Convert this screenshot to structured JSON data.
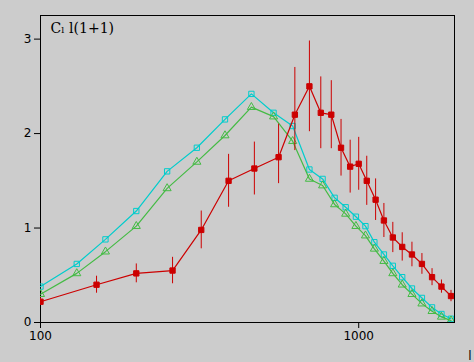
{
  "chart_data": {
    "type": "line",
    "annotation": "Cₗ l(1+1)",
    "x_label": "l",
    "log": "x",
    "xlim": [
      100,
      2000
    ],
    "ylim": [
      0,
      3.25
    ],
    "xticks": [
      100,
      1000
    ],
    "yticks": [
      0,
      1,
      2,
      3
    ],
    "grid": false,
    "series": [
      {
        "color": "#00cccc",
        "marker": "open square",
        "x": [
          100,
          130,
          160,
          200,
          250,
          310,
          380,
          460,
          540,
          620,
          700,
          770,
          840,
          910,
          980,
          1050,
          1120,
          1200,
          1280,
          1370,
          1470,
          1580,
          1700,
          1820,
          1950
        ],
        "values": [
          0.38,
          0.62,
          0.88,
          1.18,
          1.6,
          1.85,
          2.15,
          2.42,
          2.22,
          2.08,
          1.62,
          1.52,
          1.32,
          1.22,
          1.12,
          1.02,
          0.85,
          0.72,
          0.6,
          0.48,
          0.36,
          0.26,
          0.16,
          0.09,
          0.04
        ]
      },
      {
        "color": "#44bb44",
        "marker": "open triangle",
        "x": [
          100,
          130,
          160,
          200,
          250,
          310,
          380,
          460,
          540,
          620,
          700,
          770,
          840,
          910,
          980,
          1050,
          1120,
          1200,
          1280,
          1370,
          1470,
          1580,
          1700,
          1820,
          1950
        ],
        "values": [
          0.3,
          0.52,
          0.75,
          1.02,
          1.42,
          1.7,
          1.98,
          2.28,
          2.18,
          1.92,
          1.52,
          1.45,
          1.25,
          1.15,
          1.02,
          0.92,
          0.78,
          0.65,
          0.52,
          0.4,
          0.3,
          0.2,
          0.12,
          0.06,
          0.02
        ]
      },
      {
        "color": "#cc0000",
        "marker": "square",
        "x": [
          100,
          150,
          200,
          260,
          320,
          390,
          470,
          560,
          630,
          700,
          760,
          820,
          880,
          940,
          1000,
          1060,
          1130,
          1200,
          1280,
          1370,
          1470,
          1580,
          1700,
          1820,
          1950
        ],
        "values": [
          0.22,
          0.4,
          0.52,
          0.55,
          0.98,
          1.5,
          1.63,
          1.75,
          2.2,
          2.5,
          2.22,
          2.2,
          1.85,
          1.65,
          1.68,
          1.5,
          1.3,
          1.08,
          0.9,
          0.8,
          0.72,
          0.62,
          0.48,
          0.38,
          0.28
        ],
        "yerr_lo": [
          0.04,
          0.09,
          0.1,
          0.14,
          0.2,
          0.28,
          0.28,
          0.28,
          0.38,
          0.48,
          0.38,
          0.36,
          0.3,
          0.28,
          0.28,
          0.26,
          0.22,
          0.18,
          0.16,
          0.15,
          0.13,
          0.11,
          0.09,
          0.07,
          0.06
        ],
        "yerr_hi": [
          0.04,
          0.09,
          0.1,
          0.14,
          0.2,
          0.28,
          0.28,
          0.35,
          0.5,
          0.48,
          0.38,
          0.36,
          0.3,
          0.28,
          0.28,
          0.26,
          0.22,
          0.18,
          0.16,
          0.15,
          0.13,
          0.11,
          0.09,
          0.07,
          0.06
        ]
      }
    ]
  }
}
